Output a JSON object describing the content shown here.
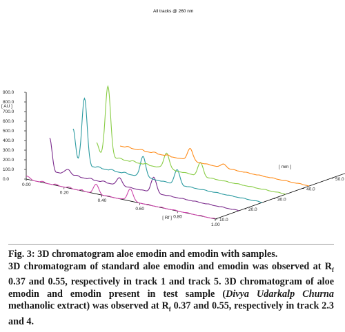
{
  "chart_data": {
    "type": "line",
    "title": "All tracks @ 260 nm",
    "xlabel": "[ Rf ]",
    "ylabel_left": "[ AU ]",
    "ylabel_right": "[ AU ]",
    "zlabel": "[ mm ]",
    "xlim": [
      0.0,
      1.0
    ],
    "ylim": [
      0.0,
      900.0
    ],
    "zlim": [
      10.0,
      60.0
    ],
    "x_ticks": [
      "0.00",
      "0.20",
      "0.40",
      "0.60",
      "0.80",
      "1.00"
    ],
    "y_ticks": [
      "0.0",
      "100.0",
      "200.0",
      "300.0",
      "400.0",
      "500.0",
      "600.0",
      "700.0",
      "800.0",
      "900.0"
    ],
    "z_ticks": [
      "10.0",
      "20.0",
      "30.0",
      "40.0",
      "50.0",
      "60.0"
    ],
    "series": [
      {
        "track": 1,
        "color": "#cc44aa",
        "peaks": [
          [
            0.0,
            30
          ],
          [
            0.37,
            95
          ],
          [
            0.55,
            130
          ]
        ]
      },
      {
        "track": 2,
        "color": "#7a2a8c",
        "peaks": [
          [
            0.0,
            330
          ],
          [
            0.1,
            60
          ],
          [
            0.37,
            80
          ],
          [
            0.55,
            160
          ]
        ]
      },
      {
        "track": 3,
        "color": "#2a9aa0",
        "peaks": [
          [
            0.0,
            340
          ],
          [
            0.06,
            680
          ],
          [
            0.37,
            220
          ],
          [
            0.55,
            150
          ]
        ]
      },
      {
        "track": 4,
        "color": "#88cc44",
        "peaks": [
          [
            0.0,
            120
          ],
          [
            0.06,
            720
          ],
          [
            0.37,
            170
          ],
          [
            0.55,
            140
          ]
        ]
      },
      {
        "track": 5,
        "color": "#ff8c1a",
        "peaks": [
          [
            0.0,
            0
          ],
          [
            0.37,
            130
          ],
          [
            0.55,
            40
          ]
        ]
      }
    ]
  },
  "caption": {
    "line1": "Fig. 3: 3D chromatogram aloe emodin and emodin with samples.",
    "line2": "3D chromatogram of standard aloe emodin and emodin was observed at R",
    "sub_f1": "f",
    "line3": " 0.37 and 0.55, respectively in track 1 and track 5. 3D chromatogram of aloe emodin and emodin present in test sample (",
    "italic": "Divya Udarkalp Churna",
    "line4": " methanolic extract) was observed at R",
    "sub_f2": "f",
    "line5": " 0.37 and 0.55, respectively in track 2.3 and 4."
  }
}
